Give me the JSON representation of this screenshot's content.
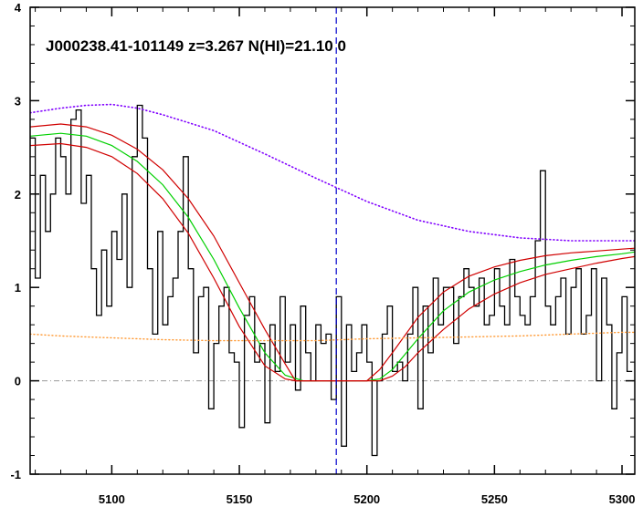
{
  "chart_data": {
    "type": "line",
    "title": "J000238.41-101149 z=3.267 N(HI)=21.10 0",
    "xlabel": "",
    "ylabel": "",
    "xlim": [
      5068,
      5305
    ],
    "ylim": [
      -1.0,
      4.0
    ],
    "x_ticks": [
      5100,
      5150,
      5200,
      5250,
      5300
    ],
    "x_tick_labels": [
      "5100",
      "5150",
      "5200",
      "5250",
      "5300"
    ],
    "y_ticks": [
      -1,
      0,
      1,
      2,
      3,
      4
    ],
    "y_tick_labels": [
      "-1",
      "0",
      "1",
      "2",
      "3",
      "4"
    ],
    "vertical_marker_x": 5188,
    "zero_line_y": 0,
    "colors": {
      "flux": "#000000",
      "model": "#00d000",
      "model_bounds": "#d00000",
      "continuum": "#8000ff",
      "error": "#ff9933",
      "marker": "#0000cc",
      "zero_line": "#999999"
    },
    "series": [
      {
        "role": "flux",
        "style": "histogram",
        "x": [
          5069,
          5071,
          5073,
          5075,
          5077,
          5079,
          5081,
          5083,
          5085,
          5087,
          5089,
          5091,
          5093,
          5095,
          5097,
          5099,
          5101,
          5103,
          5105,
          5107,
          5109,
          5111,
          5113,
          5115,
          5117,
          5119,
          5121,
          5123,
          5125,
          5127,
          5129,
          5131,
          5133,
          5135,
          5137,
          5139,
          5141,
          5143,
          5145,
          5147,
          5149,
          5151,
          5153,
          5155,
          5157,
          5159,
          5161,
          5163,
          5165,
          5167,
          5169,
          5171,
          5173,
          5175,
          5177,
          5179,
          5181,
          5183,
          5185,
          5187,
          5189,
          5191,
          5193,
          5195,
          5197,
          5199,
          5201,
          5203,
          5205,
          5207,
          5209,
          5211,
          5213,
          5215,
          5217,
          5219,
          5221,
          5223,
          5225,
          5227,
          5229,
          5231,
          5233,
          5235,
          5237,
          5239,
          5241,
          5243,
          5245,
          5247,
          5249,
          5251,
          5253,
          5255,
          5257,
          5259,
          5261,
          5263,
          5265,
          5267,
          5269,
          5271,
          5273,
          5275,
          5277,
          5279,
          5281,
          5283,
          5285,
          5287,
          5289,
          5291,
          5293,
          5295,
          5297,
          5299,
          5301,
          5303
        ],
        "y": [
          2.6,
          1.1,
          2.2,
          1.6,
          2.0,
          2.6,
          2.4,
          2.0,
          2.8,
          2.9,
          1.9,
          2.2,
          1.2,
          0.7,
          1.4,
          0.8,
          1.6,
          1.3,
          2.0,
          1.0,
          2.4,
          2.95,
          2.6,
          1.2,
          0.5,
          1.6,
          0.6,
          0.9,
          1.1,
          1.6,
          2.4,
          1.2,
          0.3,
          0.9,
          1.0,
          -0.3,
          0.4,
          0.8,
          1.0,
          0.3,
          0.2,
          -0.5,
          0.7,
          0.9,
          0.2,
          0.4,
          -0.45,
          0.6,
          0.1,
          0.9,
          0.2,
          0.6,
          -0.1,
          0.8,
          0.3,
          0.0,
          0.6,
          0.4,
          0.5,
          -0.2,
          0.9,
          -0.7,
          0.6,
          0.1,
          0.3,
          0.6,
          0.2,
          -0.8,
          0.0,
          0.5,
          0.8,
          0.1,
          0.2,
          0.0,
          0.5,
          1.0,
          -0.3,
          0.8,
          0.3,
          1.1,
          0.6,
          1.0,
          1.0,
          0.4,
          0.9,
          1.2,
          1.0,
          0.8,
          1.1,
          0.6,
          0.7,
          1.2,
          0.8,
          0.6,
          1.3,
          0.9,
          0.7,
          0.6,
          0.9,
          1.5,
          2.25,
          0.8,
          0.6,
          0.9,
          1.1,
          0.5,
          1.0,
          1.2,
          0.5,
          0.7,
          1.2,
          0.0,
          1.1,
          0.6,
          -0.3,
          0.3,
          0.9,
          0.1
        ]
      },
      {
        "role": "model",
        "style": "solid",
        "x": [
          5068,
          5080,
          5090,
          5100,
          5110,
          5120,
          5130,
          5140,
          5150,
          5160,
          5168,
          5175,
          5180,
          5190,
          5200,
          5205,
          5210,
          5220,
          5230,
          5240,
          5250,
          5260,
          5270,
          5280,
          5290,
          5300,
          5305
        ],
        "y": [
          2.62,
          2.65,
          2.62,
          2.52,
          2.35,
          2.1,
          1.75,
          1.3,
          0.78,
          0.3,
          0.06,
          0.0,
          0.0,
          0.0,
          0.0,
          0.02,
          0.12,
          0.45,
          0.75,
          0.95,
          1.08,
          1.17,
          1.24,
          1.29,
          1.33,
          1.36,
          1.38
        ]
      },
      {
        "role": "model_upper",
        "style": "solid",
        "x": [
          5068,
          5080,
          5090,
          5100,
          5110,
          5120,
          5130,
          5140,
          5150,
          5160,
          5168,
          5172,
          5175,
          5190,
          5200,
          5205,
          5210,
          5220,
          5230,
          5240,
          5250,
          5260,
          5270,
          5280,
          5290,
          5300,
          5305
        ],
        "y": [
          2.72,
          2.75,
          2.72,
          2.63,
          2.48,
          2.26,
          1.95,
          1.55,
          1.05,
          0.55,
          0.18,
          0.0,
          0.0,
          0.0,
          0.0,
          0.12,
          0.3,
          0.68,
          0.95,
          1.12,
          1.22,
          1.29,
          1.34,
          1.37,
          1.39,
          1.41,
          1.42
        ]
      },
      {
        "role": "model_lower",
        "style": "solid",
        "x": [
          5068,
          5080,
          5090,
          5100,
          5110,
          5120,
          5130,
          5140,
          5150,
          5160,
          5168,
          5172,
          5175,
          5190,
          5205,
          5210,
          5215,
          5220,
          5230,
          5240,
          5250,
          5260,
          5270,
          5280,
          5290,
          5300,
          5305
        ],
        "y": [
          2.52,
          2.54,
          2.5,
          2.4,
          2.22,
          1.95,
          1.58,
          1.1,
          0.58,
          0.16,
          0.02,
          0.0,
          0.0,
          0.0,
          0.0,
          0.05,
          0.15,
          0.3,
          0.55,
          0.77,
          0.93,
          1.05,
          1.14,
          1.2,
          1.26,
          1.31,
          1.33
        ]
      },
      {
        "role": "continuum",
        "style": "dotted",
        "x": [
          5068,
          5080,
          5090,
          5100,
          5110,
          5120,
          5140,
          5160,
          5180,
          5200,
          5220,
          5240,
          5260,
          5280,
          5300,
          5305
        ],
        "y": [
          2.87,
          2.92,
          2.95,
          2.96,
          2.92,
          2.85,
          2.68,
          2.43,
          2.17,
          1.92,
          1.72,
          1.6,
          1.53,
          1.5,
          1.5,
          1.5
        ]
      },
      {
        "role": "error",
        "style": "dotted",
        "x": [
          5068,
          5080,
          5090,
          5100,
          5120,
          5140,
          5160,
          5180,
          5200,
          5220,
          5240,
          5260,
          5280,
          5300,
          5305
        ],
        "y": [
          0.5,
          0.48,
          0.47,
          0.46,
          0.44,
          0.43,
          0.43,
          0.43,
          0.45,
          0.46,
          0.47,
          0.48,
          0.5,
          0.52,
          0.52
        ]
      }
    ]
  }
}
